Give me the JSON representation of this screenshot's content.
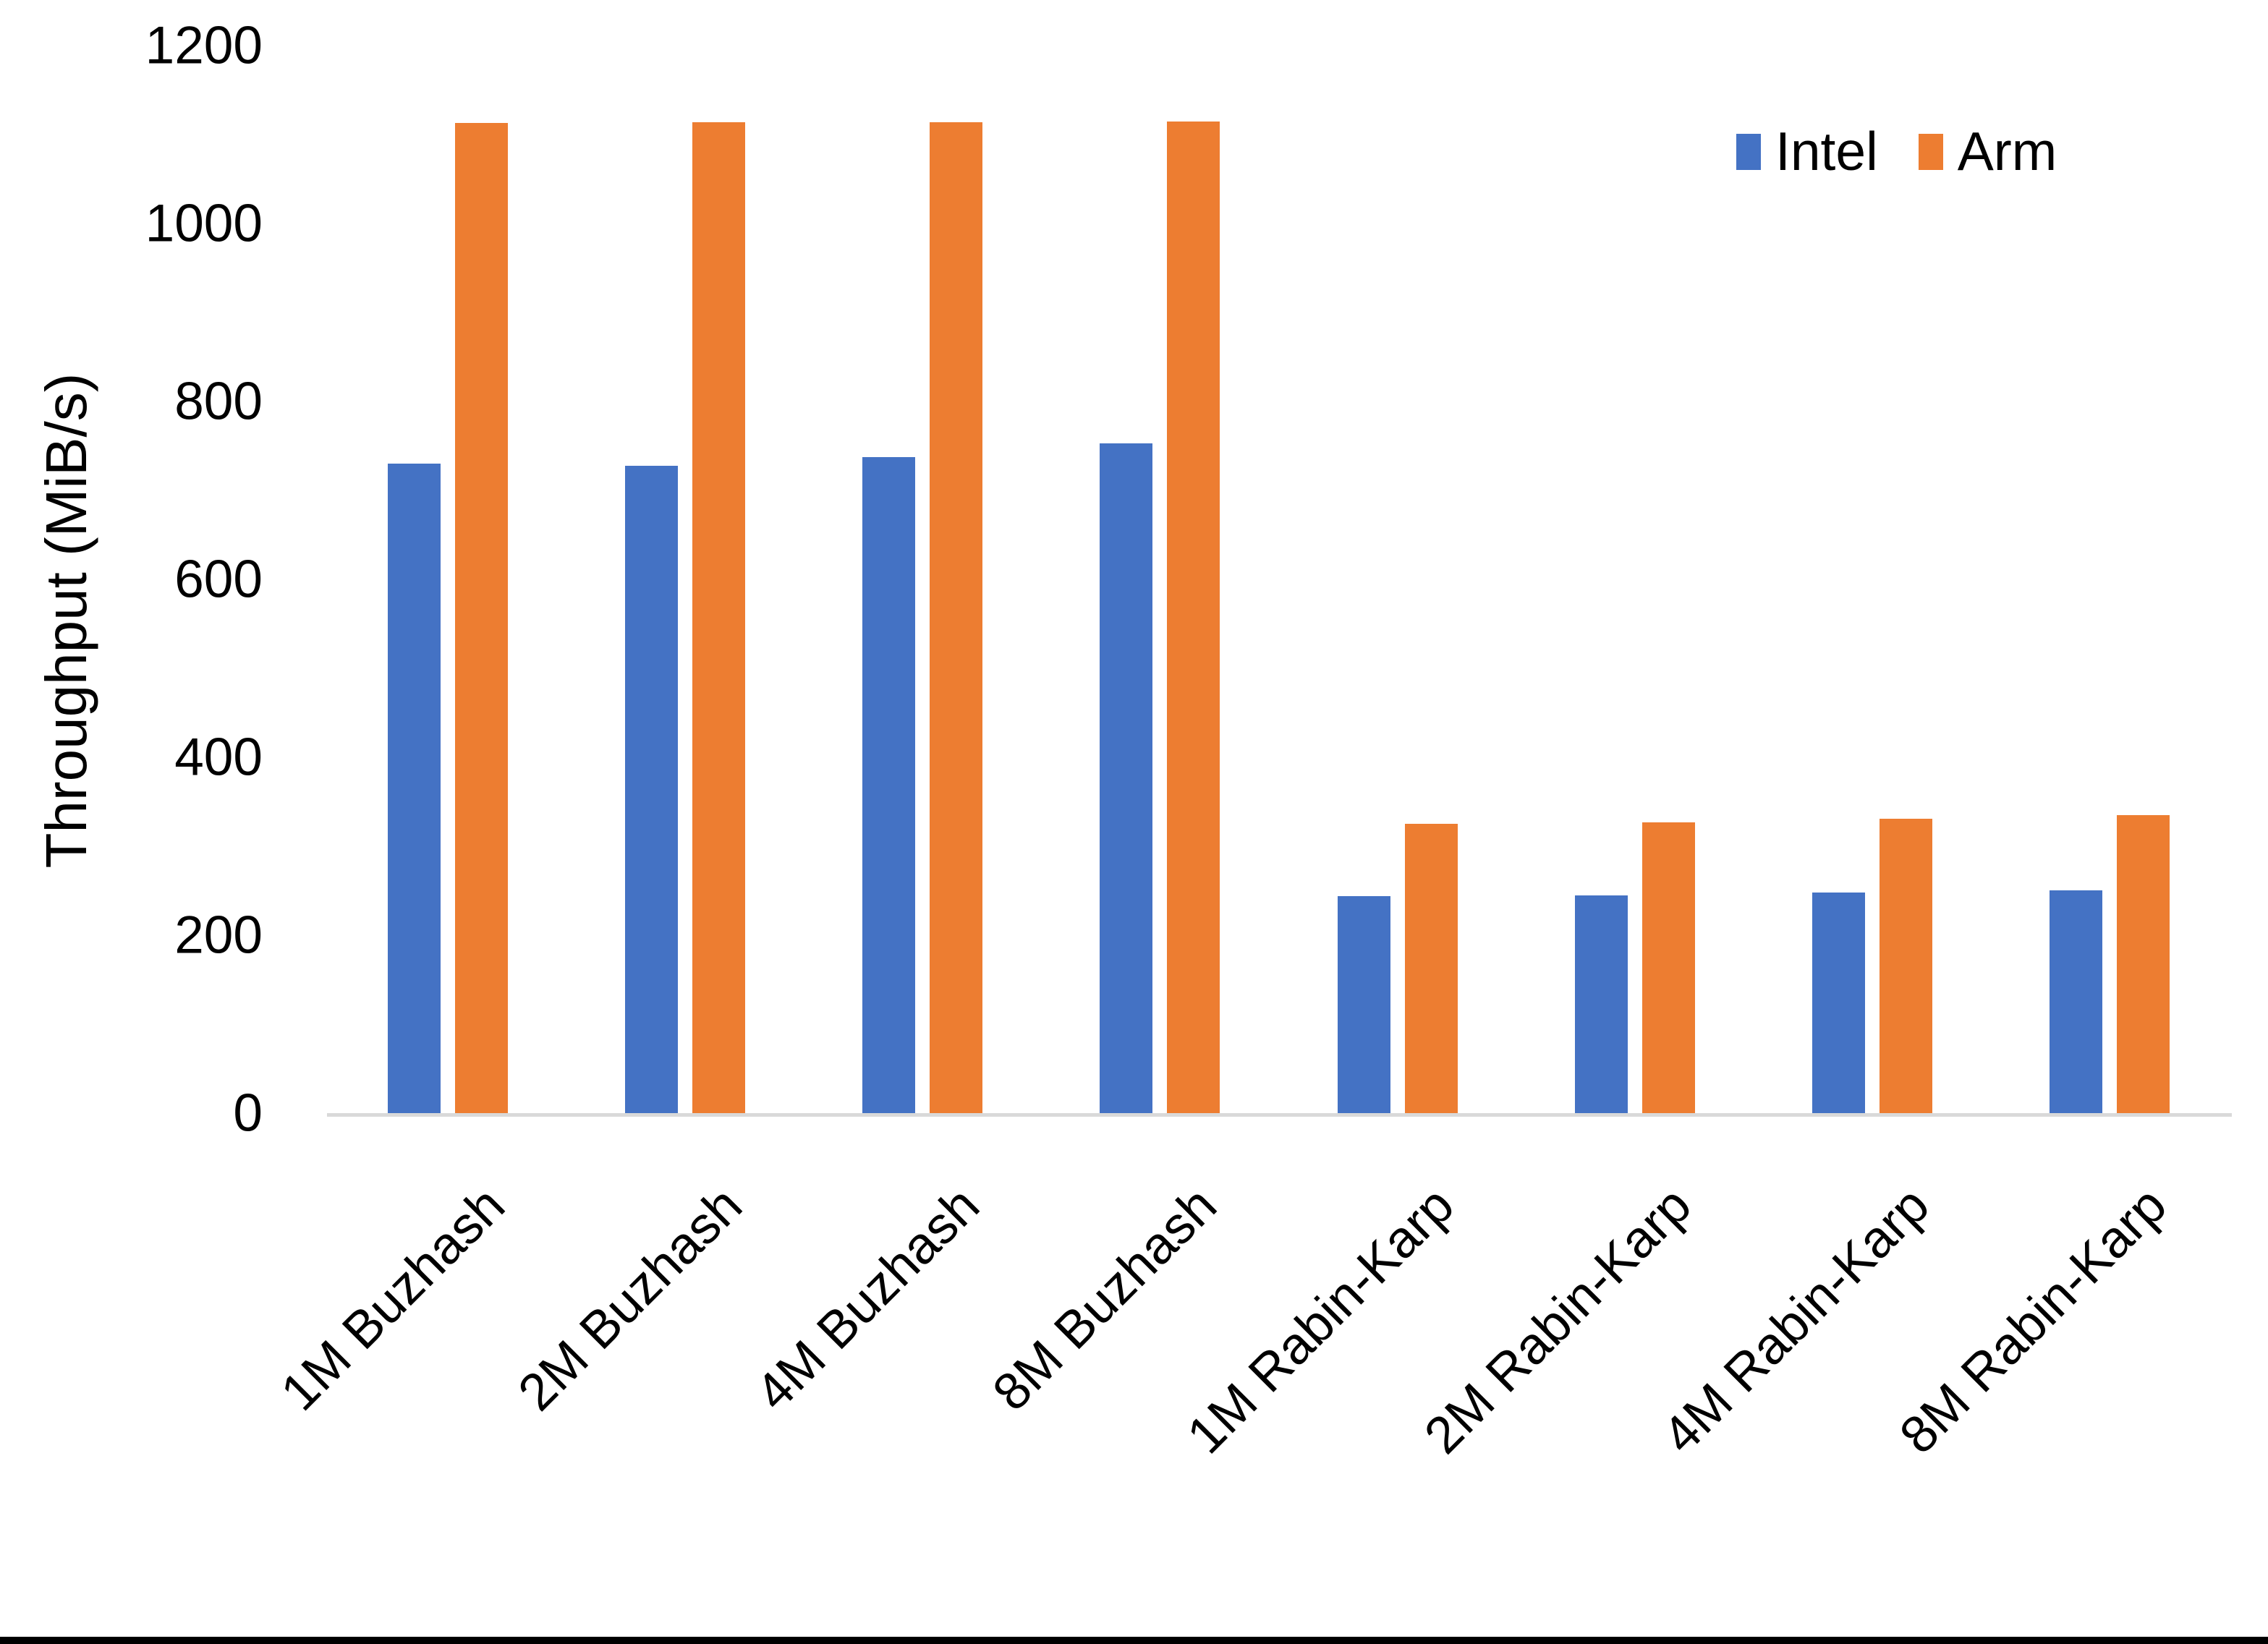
{
  "chart_data": {
    "type": "bar",
    "title": "",
    "xlabel": "",
    "ylabel": "Throughput (MiB/s)",
    "ylim": [
      0,
      1200
    ],
    "yticks": [
      0,
      200,
      400,
      600,
      800,
      1000,
      1200
    ],
    "grid": false,
    "legend_position": "top-right",
    "categories": [
      "1M Buzhash",
      "2M Buzhash",
      "4M Buzhash",
      "8M Buzhash",
      "1M Rabin-Karp",
      "2M Rabin-Karp",
      "4M Rabin-Karp",
      "8M Rabin-Karp"
    ],
    "series": [
      {
        "name": "Intel",
        "color": "#4472C4",
        "values": [
          730,
          728,
          737,
          753,
          244,
          245,
          248,
          250
        ]
      },
      {
        "name": "Arm",
        "color": "#ED7D31",
        "values": [
          1113,
          1114,
          1114,
          1115,
          325,
          327,
          331,
          335
        ]
      }
    ]
  },
  "colors": {
    "axis_line": "#D9D9D9",
    "text": "#000000",
    "background": "#FFFFFF",
    "bottom_bar": "#000000"
  }
}
